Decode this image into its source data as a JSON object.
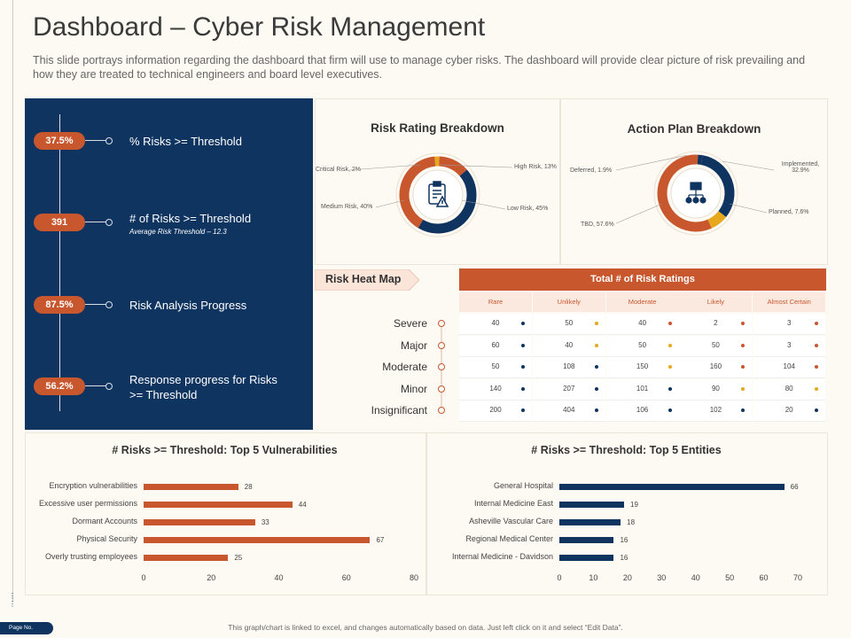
{
  "page": {
    "title": "Dashboard – Cyber Risk Management",
    "description": "This slide portrays information regarding the dashboard that firm will use to manage cyber risks. The dashboard will provide clear picture of risk prevailing and how they are treated to technical engineers and board level executives.",
    "footer_note": "This graph/chart is linked to excel, and changes automatically based on data. Just left click on it and select “Edit Data”.",
    "page_no": "Page No."
  },
  "kpis": [
    {
      "value": "37.5%",
      "label": "% Risks >= Threshold",
      "sub": ""
    },
    {
      "value": "391",
      "label": "# of Risks >= Threshold",
      "sub": "Average Risk Threshold – 12.3"
    },
    {
      "value": "87.5%",
      "label": "Risk Analysis Progress",
      "sub": ""
    },
    {
      "value": "56.2%",
      "label": "Response progress for Risks >= Threshold",
      "sub": ""
    }
  ],
  "colors": {
    "navy": "#0f3460",
    "orange": "#c8572e",
    "gold": "#e8a81e"
  },
  "chart_data": [
    {
      "type": "pie",
      "title": "Risk Rating Breakdown",
      "slices": [
        {
          "label": "Critical Risk, 2%",
          "value": 2,
          "color": "#e8a81e"
        },
        {
          "label": "High Risk, 13%",
          "value": 13,
          "color": "#c8572e"
        },
        {
          "label": "Low Risk, 45%",
          "value": 45,
          "color": "#0f3460"
        },
        {
          "label": "Medium Risk, 40%",
          "value": 40,
          "color": "#c8572e"
        }
      ]
    },
    {
      "type": "pie",
      "title": "Action Plan Breakdown",
      "slices": [
        {
          "label": "Implemented, 32.9%",
          "value": 32.9,
          "color": "#0f3460"
        },
        {
          "label": "Planned, 7.6%",
          "value": 7.6,
          "color": "#e8a81e"
        },
        {
          "label": "TBD, 57.6%",
          "value": 57.6,
          "color": "#c8572e"
        },
        {
          "label": "Deferred, 1.9%",
          "value": 1.9,
          "color": "#0f3460"
        }
      ]
    },
    {
      "type": "heatmap",
      "title": "Risk Heat Map",
      "header": "Total # of Risk Ratings",
      "columns": [
        "Rare",
        "Unlikely",
        "Moderate",
        "Likely",
        "Almost Certain"
      ],
      "rows": [
        "Severe",
        "Major",
        "Moderate",
        "Minor",
        "Insignificant"
      ],
      "values": [
        [
          40,
          50,
          40,
          2,
          3
        ],
        [
          60,
          40,
          50,
          50,
          3
        ],
        [
          50,
          108,
          150,
          160,
          104
        ],
        [
          140,
          207,
          101,
          90,
          80
        ],
        [
          200,
          404,
          106,
          102,
          20
        ]
      ],
      "dot_colors": [
        [
          "navy",
          "gold",
          "orange",
          "orange",
          "orange"
        ],
        [
          "navy",
          "gold",
          "gold",
          "orange",
          "orange"
        ],
        [
          "navy",
          "navy",
          "gold",
          "orange",
          "orange"
        ],
        [
          "navy",
          "navy",
          "navy",
          "gold",
          "gold"
        ],
        [
          "navy",
          "navy",
          "navy",
          "navy",
          "navy"
        ]
      ]
    },
    {
      "type": "bar",
      "title": "# Risks >= Threshold: Top 5 Vulnerabilities",
      "categories": [
        "Encryption vulnerabilities",
        "Excessive user permissions",
        "Dormant Accounts",
        "Physical Security",
        "Overly trusting employees"
      ],
      "values": [
        28,
        44,
        33,
        67,
        25
      ],
      "xlim": [
        0,
        80
      ],
      "ticks": [
        0,
        20,
        40,
        60,
        80
      ],
      "color": "#c8572e"
    },
    {
      "type": "bar",
      "title": "# Risks >= Threshold: Top 5 Entities",
      "categories": [
        "General Hospital",
        "Internal Medicine East",
        "Asheville Vascular Care",
        "Regional Medical Center",
        "Internal Medicine - Davidson"
      ],
      "values": [
        66,
        19,
        18,
        16,
        16
      ],
      "xlim": [
        0,
        70
      ],
      "ticks": [
        0,
        10,
        20,
        30,
        40,
        50,
        60,
        70
      ],
      "color": "#0f3460"
    }
  ]
}
